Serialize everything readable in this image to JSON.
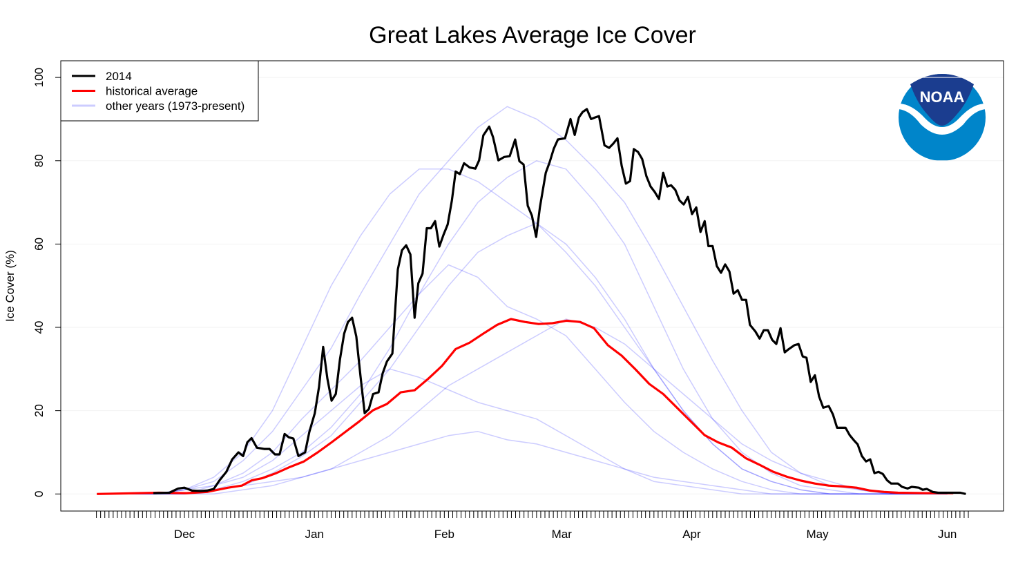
{
  "chart_data": {
    "type": "line",
    "title": "Great Lakes Average Ice Cover",
    "ylabel": "Ice Cover (%)",
    "logo_text": "NOAA",
    "legend": "top-left",
    "grid": true,
    "ylim": [
      -4.1,
      104
    ],
    "yticks": [
      0,
      20,
      40,
      60,
      80,
      100
    ],
    "xlim": [
      -29.5,
      195.4
    ],
    "xticks": [
      {
        "value": 0,
        "label": "Dec"
      },
      {
        "value": 31,
        "label": "Jan"
      },
      {
        "value": 62,
        "label": "Feb"
      },
      {
        "value": 90,
        "label": "Mar"
      },
      {
        "value": 121,
        "label": "Apr"
      },
      {
        "value": 151,
        "label": "May"
      },
      {
        "value": 182,
        "label": "Jun"
      }
    ],
    "xminorticks": [
      -21,
      -20,
      -19,
      -18,
      -17,
      -16,
      -15,
      -14,
      -13,
      -12,
      -11,
      -10,
      -9,
      -8,
      -7,
      -6,
      -5,
      -4,
      -3,
      -2,
      -1,
      0,
      1,
      2,
      3,
      4,
      5,
      6,
      7,
      8,
      9,
      10,
      11,
      12,
      13,
      14,
      15,
      16,
      17,
      18,
      19,
      20,
      21,
      22,
      23,
      24,
      25,
      26,
      27,
      28,
      29,
      30,
      31,
      32,
      33,
      34,
      35,
      36,
      37,
      38,
      39,
      40,
      41,
      42,
      43,
      44,
      45,
      46,
      47,
      48,
      49,
      50,
      51,
      52,
      53,
      54,
      55,
      56,
      57,
      58,
      59,
      60,
      61,
      62,
      63,
      64,
      65,
      66,
      67,
      68,
      69,
      70,
      71,
      72,
      73,
      74,
      75,
      76,
      77,
      78,
      79,
      80,
      81,
      82,
      83,
      84,
      85,
      86,
      87,
      88,
      89,
      90,
      91,
      92,
      93,
      94,
      95,
      96,
      97,
      98,
      99,
      100,
      101,
      102,
      103,
      104,
      105,
      106,
      107,
      108,
      109,
      110,
      111,
      112,
      113,
      114,
      115,
      116,
      117,
      118,
      119,
      120,
      121,
      122,
      123,
      124,
      125,
      126,
      127,
      128,
      129,
      130,
      131,
      132,
      133,
      134,
      135,
      136,
      137,
      138,
      139,
      140,
      141,
      142,
      143,
      144,
      145,
      146,
      147,
      148,
      149,
      150,
      151,
      152,
      153,
      154,
      155,
      156,
      157,
      158,
      159,
      160,
      161,
      162,
      163,
      164,
      165,
      166,
      167,
      168,
      169,
      170,
      171,
      172,
      173,
      174,
      175,
      176,
      177,
      178,
      179,
      180,
      181,
      182,
      183,
      184,
      185,
      186,
      187
    ],
    "series": [
      {
        "name": "2014",
        "color": "#000000",
        "x": [
          -7.4,
          -3.6,
          -1.5,
          0,
          1.8,
          3.8,
          5.4,
          7,
          8.4,
          10,
          11.4,
          12.9,
          14,
          15,
          16,
          17.3,
          19,
          20.3,
          21.6,
          22.7,
          23.9,
          24.9,
          26,
          27.2,
          28.8,
          29.8,
          31.1,
          32.1,
          33.1,
          34.1,
          35.1,
          36.1,
          37.1,
          38.1,
          39,
          40,
          41,
          42,
          43,
          44,
          45,
          46.3,
          47.3,
          48.3,
          49.6,
          50.9,
          51.9,
          52.9,
          53.9,
          54.9,
          55.8,
          56.8,
          57.8,
          58.8,
          59.8,
          60.8,
          61.8,
          62.8,
          63.8,
          64.7,
          65.7,
          66.7,
          68,
          69.4,
          70.3,
          71.3,
          72.7,
          73.6,
          74.9,
          76.3,
          77.6,
          78.9,
          79.9,
          80.9,
          81.9,
          82.9,
          83.9,
          84.8,
          86.2,
          87.1,
          88.1,
          89.1,
          90.8,
          92.1,
          93.1,
          94.1,
          95,
          96,
          97,
          98,
          98.9,
          100.2,
          101.3,
          102.3,
          103.3,
          104.3,
          105.3,
          106.3,
          107.2,
          108.2,
          109.2,
          110.2,
          111.2,
          112.2,
          113.2,
          114.2,
          115.2,
          116.1,
          117.1,
          118.1,
          119.1,
          120.1,
          121.1,
          122.1,
          123.1,
          124.1,
          125,
          126,
          127,
          128,
          129,
          130,
          131,
          132,
          133,
          134,
          134.9,
          136.2,
          137.2,
          138.2,
          139.2,
          140.2,
          141.2,
          142.2,
          143.2,
          144.2,
          145.5,
          146.5,
          147.5,
          148.4,
          149.4,
          150.4,
          151.4,
          152.4,
          153.7,
          154.7,
          155.7,
          157.7,
          158.7,
          159.7,
          160.6,
          161.6,
          162.6,
          163.6,
          164.6,
          165.6,
          166.6,
          167.6,
          168.6,
          170.2,
          171.2,
          172.5,
          173.5,
          175.2,
          176.1,
          177.1,
          178.5,
          179.8,
          182.6,
          185.1,
          186.4
        ],
        "values": [
          0.2,
          0.3,
          1.3,
          1.5,
          0.8,
          0.7,
          0.8,
          1.2,
          3.3,
          5.3,
          8.3,
          10,
          9.1,
          12.4,
          13.4,
          11.1,
          10.8,
          10.8,
          9.5,
          9.5,
          14.4,
          13.6,
          13.3,
          9.1,
          10,
          14.9,
          19.4,
          25.7,
          35.3,
          27.7,
          22.4,
          24,
          32.3,
          38.5,
          41.3,
          42.3,
          37.8,
          28.2,
          19.4,
          20.4,
          24,
          24.4,
          29,
          31.8,
          33.7,
          53.9,
          58.5,
          59.7,
          57.5,
          42.3,
          50.6,
          52.9,
          63.8,
          63.8,
          65.5,
          59.4,
          62.2,
          64.7,
          70.5,
          77.4,
          76.8,
          79.4,
          78.4,
          78.1,
          80.1,
          86.1,
          88.2,
          85.7,
          80.1,
          80.9,
          81.1,
          85.1,
          79.9,
          79.1,
          69.2,
          66.8,
          61.7,
          68.8,
          77.1,
          79.6,
          82.9,
          85.1,
          85.4,
          90,
          86.2,
          90.4,
          91.7,
          92.4,
          90,
          90.4,
          90.7,
          83.7,
          83.1,
          84.1,
          85.4,
          78.8,
          74.5,
          75.1,
          82.8,
          82.1,
          80.4,
          76.3,
          73.8,
          72.5,
          70.8,
          77.1,
          73.8,
          74.1,
          73,
          70.5,
          69.5,
          71.3,
          67.2,
          68.8,
          62.9,
          65.5,
          59.5,
          59.5,
          54.7,
          53.1,
          55.1,
          53.4,
          48.1,
          48.9,
          46.6,
          46.6,
          40.6,
          39,
          37.3,
          39.3,
          39.3,
          37,
          36,
          39.8,
          34,
          34.8,
          35.7,
          36,
          33,
          32.7,
          26.9,
          28.5,
          23.4,
          20.7,
          21.1,
          19.1,
          15.9,
          15.9,
          14.1,
          12.9,
          11.9,
          9.1,
          7.8,
          8.3,
          5,
          5.3,
          4.8,
          3.3,
          2.5,
          2.5,
          1.7,
          1.3,
          1.7,
          1.5,
          1,
          1.2,
          0.5,
          0.3,
          0.3,
          0.3,
          0
        ]
      },
      {
        "name": "historical average",
        "color": "#ff0000",
        "x": [
          -20.9,
          -11,
          -6.1,
          0.5,
          5.4,
          10.4,
          13.7,
          16.1,
          18.6,
          21.9,
          25.2,
          28.5,
          31.8,
          35.1,
          38.4,
          41.7,
          45,
          48.3,
          51.6,
          54.9,
          58.2,
          61.4,
          64.7,
          68,
          71.3,
          74.6,
          77.9,
          81.2,
          84.5,
          87.8,
          91.1,
          94.4,
          97.7,
          101,
          104.3,
          107.6,
          110.9,
          114.2,
          117.5,
          120.8,
          124.1,
          127.3,
          130.6,
          133.9,
          137.2,
          140.5,
          143.8,
          147.1,
          150.4,
          153.7,
          157,
          160.3,
          163.6,
          166.9,
          170.2,
          176.8,
          183.4
        ],
        "values": [
          0,
          0.2,
          0.3,
          0.2,
          0.5,
          1.5,
          2,
          3.3,
          3.8,
          5,
          6.5,
          7.8,
          10,
          12.4,
          14.9,
          17.4,
          20.1,
          21.6,
          24.4,
          24.9,
          27.7,
          30.7,
          34.8,
          36.3,
          38.5,
          40.6,
          42,
          41.3,
          40.8,
          41,
          41.6,
          41.3,
          39.8,
          35.7,
          33.2,
          29.9,
          26.4,
          24,
          20.7,
          17.4,
          14.1,
          12.4,
          11.1,
          8.6,
          7,
          5.3,
          4.1,
          3.2,
          2.5,
          2,
          1.8,
          1.5,
          0.8,
          0.5,
          0.3,
          0.2,
          0.2
        ]
      },
      {
        "name": "other years (1973-present)",
        "color": "rgba(0,0,255,0.2)",
        "x": [
          -14,
          -7,
          0,
          7,
          14,
          21,
          28,
          35,
          42,
          49,
          56,
          63,
          70,
          77,
          84,
          91,
          98,
          105,
          112,
          119,
          126,
          133,
          140,
          147,
          154,
          161,
          168,
          175,
          182
        ],
        "values": [
          [
            0,
            0,
            1,
            3,
            8,
            15,
            25,
            35,
            48,
            60,
            72,
            80,
            88,
            93,
            90,
            85,
            78,
            70,
            58,
            45,
            32,
            20,
            10,
            5,
            2,
            1,
            0,
            0,
            0
          ],
          [
            0,
            0,
            0,
            2,
            5,
            10,
            18,
            25,
            32,
            40,
            48,
            55,
            52,
            45,
            42,
            38,
            30,
            22,
            15,
            10,
            6,
            3,
            1,
            0,
            0,
            0,
            0,
            0,
            0
          ],
          [
            0,
            0,
            0,
            1,
            2,
            3,
            4,
            6,
            8,
            10,
            12,
            14,
            15,
            13,
            12,
            10,
            8,
            6,
            4,
            3,
            2,
            1,
            0,
            0,
            0,
            0,
            0,
            0,
            0
          ],
          [
            0,
            0,
            0,
            1,
            3,
            6,
            10,
            16,
            24,
            35,
            48,
            60,
            70,
            76,
            80,
            78,
            70,
            60,
            45,
            30,
            18,
            10,
            5,
            2,
            1,
            0,
            0,
            0,
            0
          ],
          [
            0,
            0,
            1,
            2,
            4,
            8,
            14,
            20,
            26,
            30,
            28,
            25,
            22,
            20,
            18,
            14,
            10,
            6,
            3,
            2,
            1,
            0,
            0,
            0,
            0,
            0,
            0,
            0,
            0
          ],
          [
            0,
            0,
            0,
            1,
            2,
            5,
            9,
            14,
            22,
            30,
            40,
            50,
            58,
            62,
            65,
            60,
            52,
            42,
            30,
            20,
            12,
            6,
            3,
            1,
            0,
            0,
            0,
            0,
            0
          ],
          [
            0,
            0,
            1,
            4,
            10,
            20,
            35,
            50,
            62,
            72,
            78,
            78,
            75,
            70,
            65,
            58,
            50,
            40,
            30,
            20,
            12,
            6,
            3,
            1,
            0,
            0,
            0,
            0,
            0
          ],
          [
            0,
            0,
            0,
            0,
            1,
            2,
            4,
            6,
            10,
            14,
            20,
            26,
            30,
            34,
            38,
            42,
            40,
            36,
            30,
            24,
            18,
            12,
            8,
            5,
            3,
            1,
            0,
            0,
            0
          ]
        ]
      }
    ]
  }
}
